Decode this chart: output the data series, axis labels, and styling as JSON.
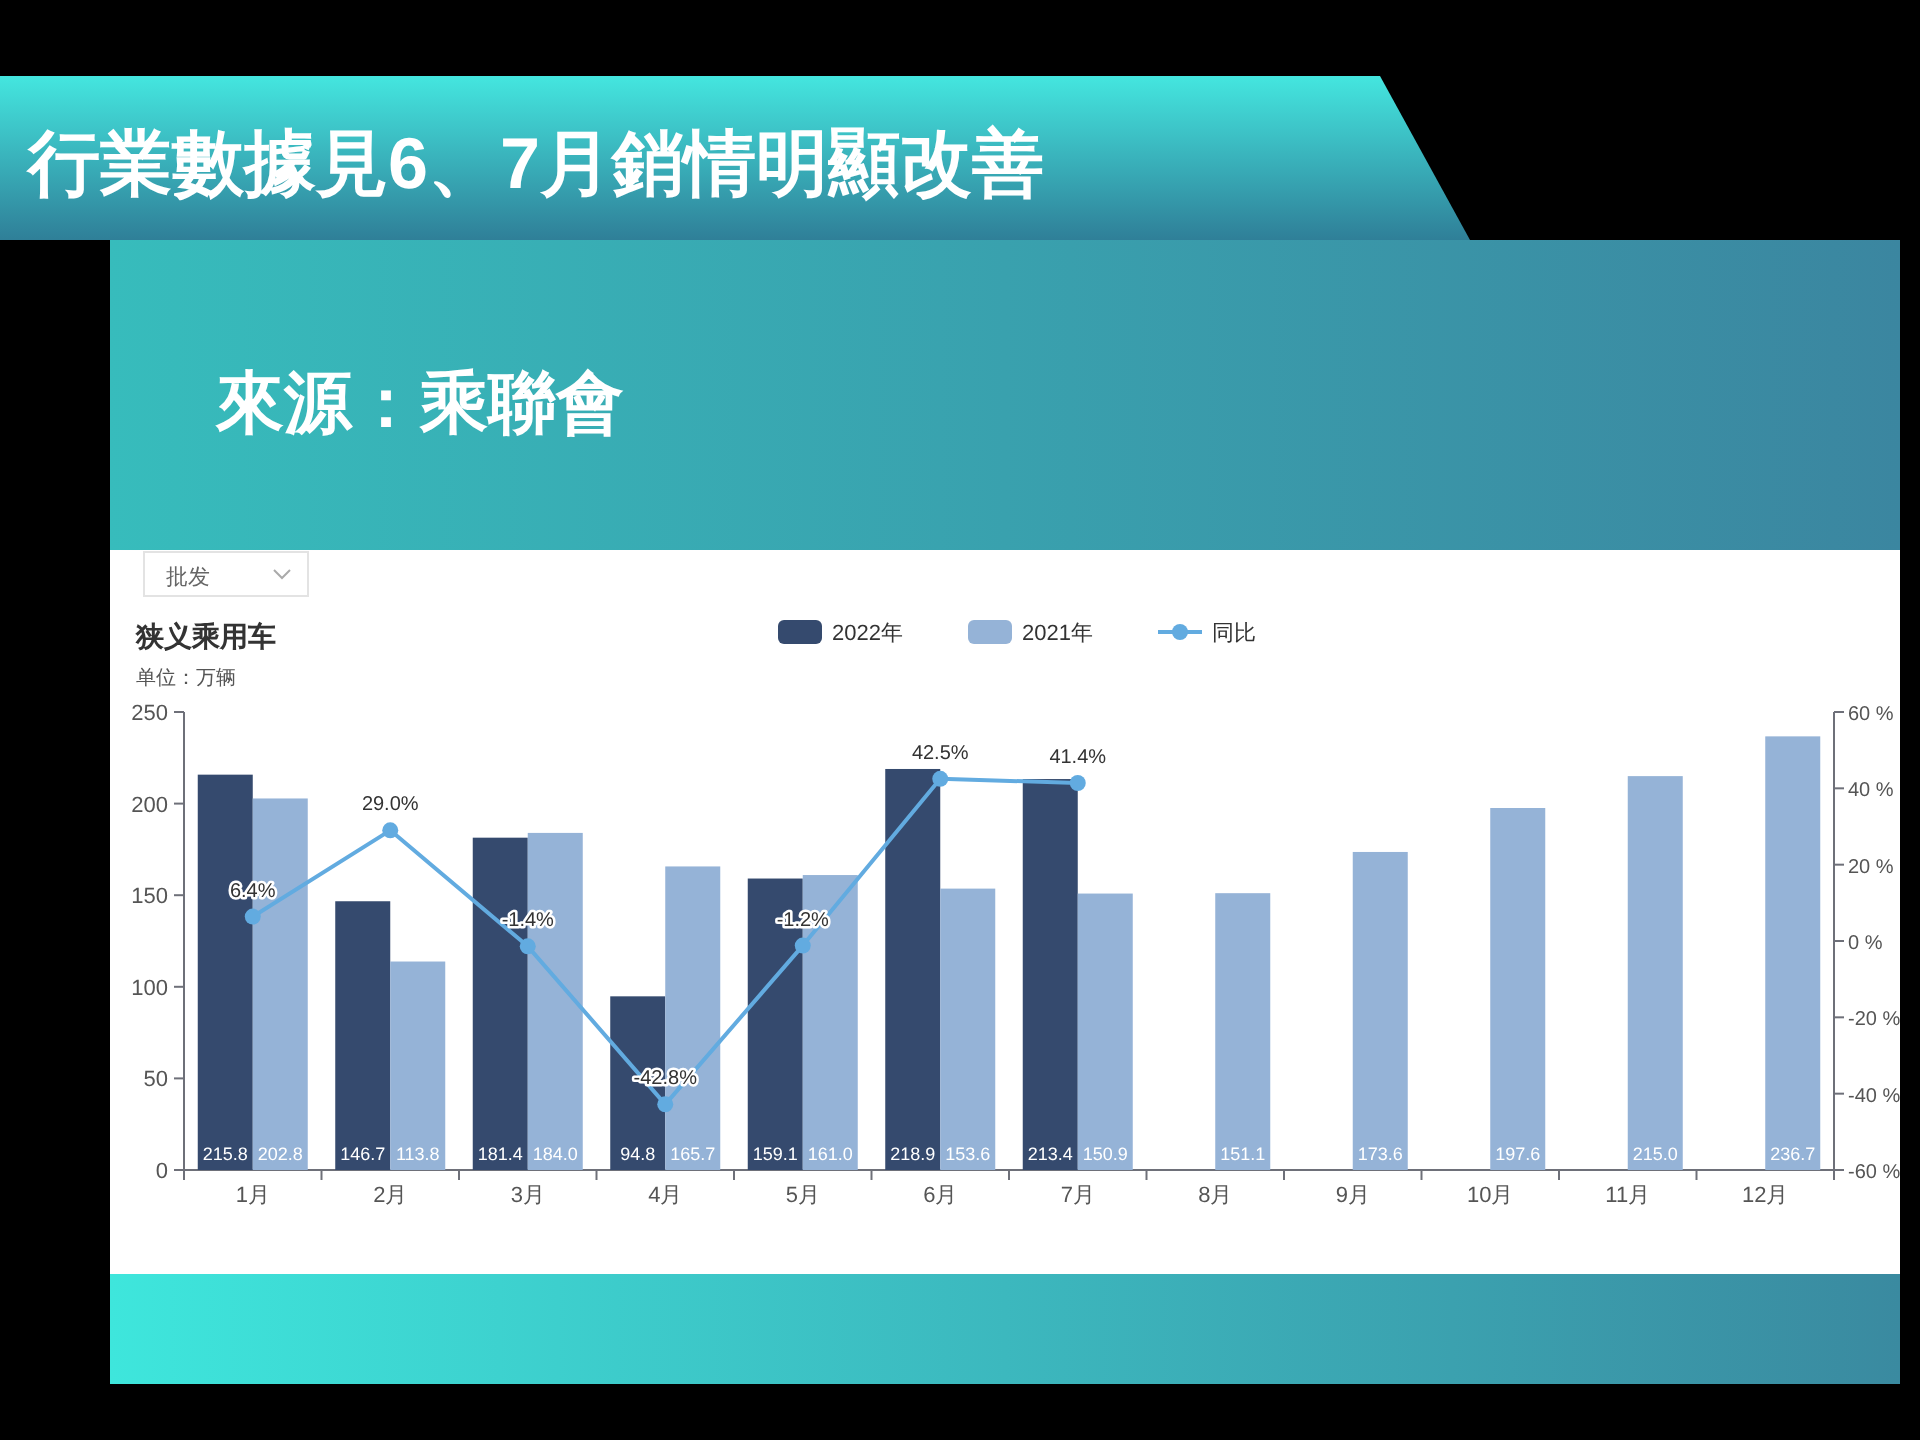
{
  "chart_data": {
    "type": "bar",
    "title": "行業數據見6、7月銷情明顯改善",
    "subtitle": "狭义乘用车",
    "ylabel": "单位：万辆",
    "annotations": [
      "來源：乘聯會",
      "批发"
    ],
    "categories": [
      "1月",
      "2月",
      "3月",
      "4月",
      "5月",
      "6月",
      "7月",
      "8月",
      "9月",
      "10月",
      "11月",
      "12月"
    ],
    "series": [
      {
        "name": "2022年",
        "color": "#354a6e",
        "values": [
          215.8,
          146.7,
          181.4,
          94.8,
          159.1,
          218.9,
          213.4,
          null,
          null,
          null,
          null,
          null
        ],
        "value_labels": [
          "215.8",
          "146.7",
          "181.4",
          "94.8",
          "159.1",
          "218.9",
          "213.4",
          null,
          null,
          null,
          null,
          null
        ]
      },
      {
        "name": "2021年",
        "color": "#95b3d7",
        "values": [
          202.8,
          113.8,
          184.0,
          165.7,
          161.0,
          153.6,
          150.9,
          151.1,
          173.6,
          197.6,
          215.0,
          236.7
        ],
        "value_labels": [
          "202.8",
          "113.8",
          "184.0",
          "165.7",
          "161.0",
          "153.6",
          "150.9",
          "151.1",
          "173.6",
          "197.6",
          "215.0",
          "236.7"
        ]
      },
      {
        "name": "同比",
        "type": "line",
        "axis": "y2",
        "color": "#62abe0",
        "values": [
          6.4,
          29.0,
          -1.4,
          -42.8,
          -1.2,
          42.5,
          41.4,
          null,
          null,
          null,
          null,
          null
        ],
        "value_labels": [
          "6.4%",
          "29.0%",
          "-1.4%",
          "-42.8%",
          "-1.2%",
          "42.5%",
          "41.4%",
          null,
          null,
          null,
          null,
          null
        ]
      }
    ],
    "ylim": [
      0,
      250
    ],
    "yticks": [
      0,
      50,
      100,
      150,
      200,
      250
    ],
    "y2lim": [
      -60,
      60
    ],
    "y2ticks": [
      {
        "value": -60,
        "label": "-60 %"
      },
      {
        "value": -40,
        "label": "-40 %"
      },
      {
        "value": -20,
        "label": "-20 %"
      },
      {
        "value": 0,
        "label": "0 %"
      },
      {
        "value": 20,
        "label": "20 %"
      },
      {
        "value": 40,
        "label": "40 %"
      },
      {
        "value": 60,
        "label": "60 %"
      }
    ],
    "legend": "top",
    "grid": false,
    "marker": "circle"
  }
}
